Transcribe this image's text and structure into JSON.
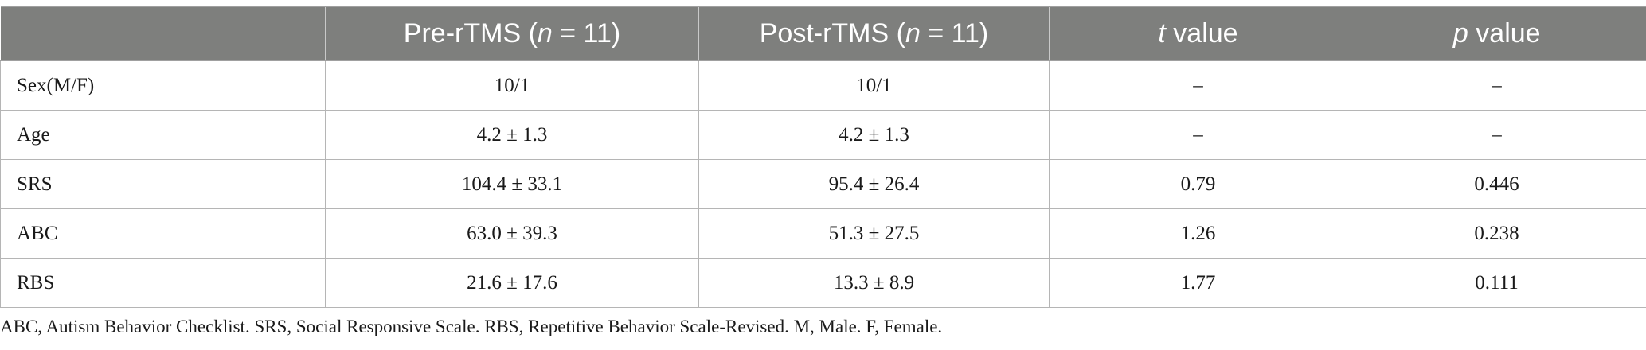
{
  "table": {
    "headers": {
      "col0": "",
      "col1": {
        "pre": "Pre-rTMS (",
        "n": "n",
        "post": " = 11)"
      },
      "col2": {
        "pre": "Post-rTMS (",
        "n": "n",
        "post": " = 11)"
      },
      "col3": {
        "var": "t",
        "post": " value"
      },
      "col4": {
        "var": "p",
        "post": " value"
      }
    },
    "rows": [
      {
        "label": "Sex(M/F)",
        "pre": "10/1",
        "post": "10/1",
        "t": "–",
        "p": "–"
      },
      {
        "label": "Age",
        "pre": "4.2 ± 1.3",
        "post": "4.2 ± 1.3",
        "t": "–",
        "p": "–"
      },
      {
        "label": "SRS",
        "pre": "104.4 ± 33.1",
        "post": "95.4 ± 26.4",
        "t": "0.79",
        "p": "0.446"
      },
      {
        "label": "ABC",
        "pre": "63.0 ± 39.3",
        "post": "51.3 ± 27.5",
        "t": "1.26",
        "p": "0.238"
      },
      {
        "label": "RBS",
        "pre": "21.6 ± 17.6",
        "post": "13.3 ± 8.9",
        "t": "1.77",
        "p": "0.111"
      }
    ]
  },
  "footnote": "ABC, Autism Behavior Checklist. SRS, Social Responsive Scale. RBS, Repetitive Behavior Scale-Revised. M, Male. F, Female.",
  "colors": {
    "header_bg": "#7e7f7d",
    "header_text": "#ffffff",
    "grid": "#b5b5b5"
  }
}
